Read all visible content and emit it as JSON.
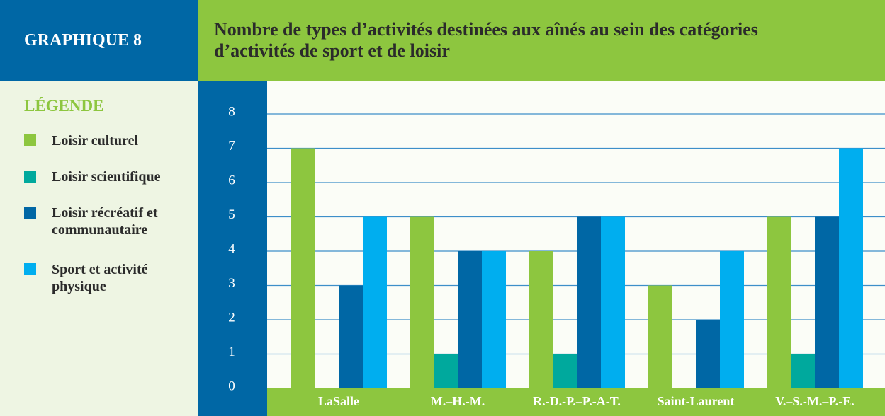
{
  "chart_data": {
    "type": "bar",
    "label": "GRAPHIQUE 8",
    "title": "Nombre de types d’activités destinées aux aînés au sein des catégories d’activités de sport et de loisir",
    "legend_title": "LÉGENDE",
    "categories": [
      "LaSalle",
      "M.–H.-M.",
      "R.-D.-P.–P.-A-T.",
      "Saint-Laurent",
      "V.–S.-M.–P.-E."
    ],
    "series": [
      {
        "name": "Loisir culturel",
        "color": "#8dc63f",
        "values": [
          7,
          5,
          4,
          3,
          5
        ]
      },
      {
        "name": "Loisir scientifique",
        "color": "#00a99d",
        "values": [
          0,
          1,
          1,
          0,
          1
        ]
      },
      {
        "name": "Loisir récréatif et communautaire",
        "color": "#0067a5",
        "values": [
          3,
          4,
          5,
          2,
          5
        ]
      },
      {
        "name": "Sport et activité physique",
        "color": "#00aeef",
        "values": [
          5,
          4,
          5,
          4,
          7
        ]
      }
    ],
    "ylim": [
      0,
      8
    ],
    "yticks": [
      0,
      1,
      2,
      3,
      4,
      5,
      6,
      7,
      8
    ],
    "grid": true,
    "legend": "left"
  }
}
